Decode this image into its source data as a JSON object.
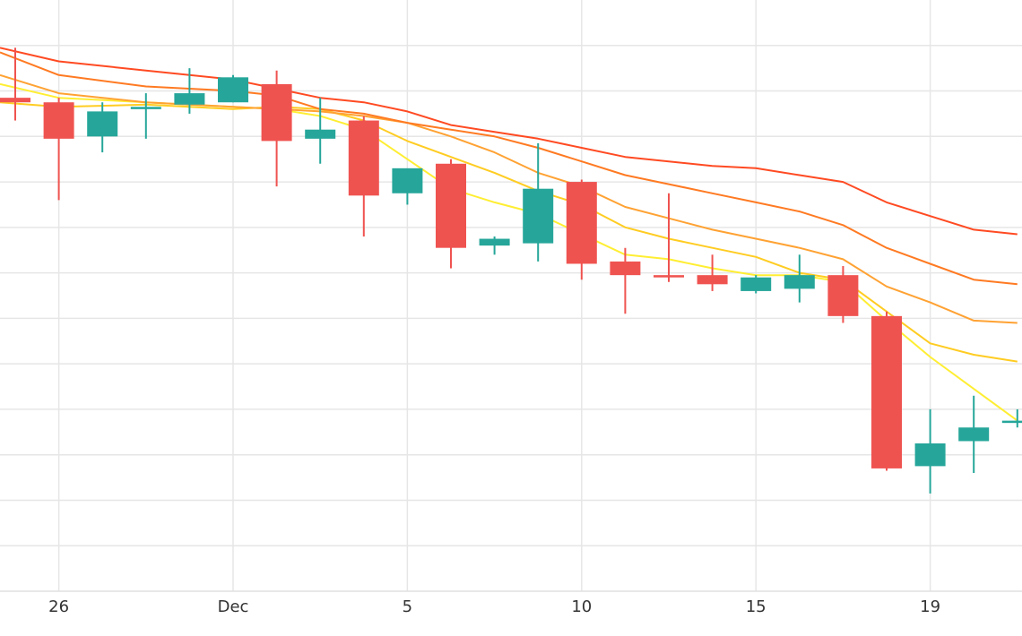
{
  "chart_data": {
    "type": "candlestick",
    "x_tick_labels": [
      {
        "label": "26",
        "day": 1
      },
      {
        "label": "Dec",
        "day": 5
      },
      {
        "label": "5",
        "day": 9
      },
      {
        "label": "10",
        "day": 13
      },
      {
        "label": "15",
        "day": 17
      },
      {
        "label": "19",
        "day": 21
      }
    ],
    "ylim": [
      0,
      13
    ],
    "horizontal_grid_values": [
      1,
      2,
      3,
      4,
      5,
      6,
      7,
      8,
      9,
      10,
      11,
      12
    ],
    "grid": true,
    "colors": {
      "up": "#26a69a",
      "down": "#ef5350",
      "grid": "#e6e6e6",
      "ma_lines": [
        "#ffee33",
        "#ffcc22",
        "#ffa233",
        "#ff7a22",
        "#ff4a22"
      ]
    },
    "candles": [
      {
        "day": 0,
        "open": 10.85,
        "high": 11.95,
        "low": 10.35,
        "close": 10.75
      },
      {
        "day": 1,
        "open": 10.75,
        "high": 10.85,
        "low": 8.6,
        "close": 9.95
      },
      {
        "day": 2,
        "open": 10.0,
        "high": 10.75,
        "low": 9.65,
        "close": 10.55
      },
      {
        "day": 3,
        "open": 10.6,
        "high": 10.95,
        "low": 9.95,
        "close": 10.65
      },
      {
        "day": 4,
        "open": 10.7,
        "high": 11.5,
        "low": 10.5,
        "close": 10.95
      },
      {
        "day": 5,
        "open": 10.75,
        "high": 11.35,
        "low": 10.75,
        "close": 11.3
      },
      {
        "day": 6,
        "open": 11.15,
        "high": 11.45,
        "low": 8.9,
        "close": 9.9
      },
      {
        "day": 7,
        "open": 9.95,
        "high": 10.85,
        "low": 9.4,
        "close": 10.15
      },
      {
        "day": 8,
        "open": 10.35,
        "high": 10.45,
        "low": 7.8,
        "close": 8.7
      },
      {
        "day": 9,
        "open": 8.75,
        "high": 9.25,
        "low": 8.5,
        "close": 9.3
      },
      {
        "day": 10,
        "open": 9.4,
        "high": 9.5,
        "low": 7.1,
        "close": 7.55
      },
      {
        "day": 11,
        "open": 7.6,
        "high": 7.8,
        "low": 7.4,
        "close": 7.75
      },
      {
        "day": 12,
        "open": 7.65,
        "high": 9.85,
        "low": 7.25,
        "close": 8.85
      },
      {
        "day": 13,
        "open": 9.0,
        "high": 9.05,
        "low": 6.85,
        "close": 7.2
      },
      {
        "day": 14,
        "open": 7.25,
        "high": 7.55,
        "low": 6.1,
        "close": 6.95
      },
      {
        "day": 15,
        "open": 6.95,
        "high": 8.75,
        "low": 6.8,
        "close": 6.9
      },
      {
        "day": 16,
        "open": 6.95,
        "high": 7.4,
        "low": 6.6,
        "close": 6.75
      },
      {
        "day": 17,
        "open": 6.6,
        "high": 6.95,
        "low": 6.55,
        "close": 6.9
      },
      {
        "day": 18,
        "open": 6.65,
        "high": 7.4,
        "low": 6.35,
        "close": 6.95
      },
      {
        "day": 19,
        "open": 6.95,
        "high": 7.15,
        "low": 5.9,
        "close": 6.05
      },
      {
        "day": 20,
        "open": 6.05,
        "high": 6.15,
        "low": 2.65,
        "close": 2.7
      },
      {
        "day": 21,
        "open": 2.75,
        "high": 4.0,
        "low": 2.15,
        "close": 3.25
      },
      {
        "day": 22,
        "open": 3.3,
        "high": 4.3,
        "low": 2.6,
        "close": 3.6
      },
      {
        "day": 23,
        "open": 3.7,
        "high": 4.0,
        "low": 3.6,
        "close": 3.75
      }
    ],
    "moving_averages": [
      {
        "color": "#ffee33",
        "points": [
          [
            -0.35,
            11.15
          ],
          [
            1,
            10.85
          ],
          [
            3,
            10.75
          ],
          [
            5,
            10.65
          ],
          [
            6,
            10.6
          ],
          [
            7,
            10.45
          ],
          [
            8,
            10.15
          ],
          [
            9,
            9.5
          ],
          [
            10,
            8.85
          ],
          [
            11,
            8.55
          ],
          [
            12,
            8.3
          ],
          [
            13,
            7.85
          ],
          [
            14,
            7.4
          ],
          [
            15,
            7.3
          ],
          [
            16,
            7.1
          ],
          [
            17,
            6.95
          ],
          [
            18,
            6.95
          ],
          [
            19,
            6.8
          ],
          [
            20,
            5.95
          ],
          [
            21,
            5.15
          ],
          [
            22,
            4.45
          ],
          [
            23,
            3.75
          ]
        ]
      },
      {
        "color": "#ffcc22",
        "points": [
          [
            -0.35,
            10.75
          ],
          [
            1,
            10.65
          ],
          [
            3,
            10.7
          ],
          [
            5,
            10.6
          ],
          [
            6,
            10.65
          ],
          [
            7,
            10.6
          ],
          [
            8,
            10.35
          ],
          [
            9,
            9.9
          ],
          [
            10,
            9.55
          ],
          [
            11,
            9.2
          ],
          [
            12,
            8.8
          ],
          [
            13,
            8.5
          ],
          [
            14,
            8.0
          ],
          [
            15,
            7.75
          ],
          [
            16,
            7.55
          ],
          [
            17,
            7.35
          ],
          [
            18,
            7.0
          ],
          [
            19,
            6.85
          ],
          [
            20,
            6.15
          ],
          [
            21,
            5.45
          ],
          [
            22,
            5.2
          ],
          [
            23,
            5.05
          ]
        ]
      },
      {
        "color": "#ffa233",
        "points": [
          [
            -0.35,
            11.35
          ],
          [
            1,
            10.95
          ],
          [
            3,
            10.75
          ],
          [
            5,
            10.65
          ],
          [
            6,
            10.6
          ],
          [
            7,
            10.55
          ],
          [
            8,
            10.45
          ],
          [
            9,
            10.3
          ],
          [
            10,
            10.0
          ],
          [
            11,
            9.65
          ],
          [
            12,
            9.2
          ],
          [
            13,
            8.9
          ],
          [
            14,
            8.45
          ],
          [
            15,
            8.2
          ],
          [
            16,
            7.95
          ],
          [
            17,
            7.75
          ],
          [
            18,
            7.55
          ],
          [
            19,
            7.3
          ],
          [
            20,
            6.7
          ],
          [
            21,
            6.35
          ],
          [
            22,
            5.95
          ],
          [
            23,
            5.9
          ]
        ]
      },
      {
        "color": "#ff7a22",
        "points": [
          [
            -0.35,
            11.85
          ],
          [
            1,
            11.35
          ],
          [
            3,
            11.1
          ],
          [
            5,
            11.0
          ],
          [
            6,
            10.9
          ],
          [
            7,
            10.6
          ],
          [
            8,
            10.5
          ],
          [
            9,
            10.3
          ],
          [
            10,
            10.15
          ],
          [
            11,
            10.0
          ],
          [
            12,
            9.75
          ],
          [
            13,
            9.45
          ],
          [
            14,
            9.15
          ],
          [
            15,
            8.95
          ],
          [
            16,
            8.75
          ],
          [
            17,
            8.55
          ],
          [
            18,
            8.35
          ],
          [
            19,
            8.05
          ],
          [
            20,
            7.55
          ],
          [
            21,
            7.2
          ],
          [
            22,
            6.85
          ],
          [
            23,
            6.75
          ]
        ]
      },
      {
        "color": "#ff4a22",
        "points": [
          [
            -0.35,
            11.95
          ],
          [
            1,
            11.65
          ],
          [
            3,
            11.45
          ],
          [
            5,
            11.25
          ],
          [
            6,
            11.05
          ],
          [
            7,
            10.85
          ],
          [
            8,
            10.75
          ],
          [
            9,
            10.55
          ],
          [
            10,
            10.25
          ],
          [
            11,
            10.1
          ],
          [
            12,
            9.95
          ],
          [
            13,
            9.75
          ],
          [
            14,
            9.55
          ],
          [
            15,
            9.45
          ],
          [
            16,
            9.35
          ],
          [
            17,
            9.3
          ],
          [
            18,
            9.15
          ],
          [
            19,
            9.0
          ],
          [
            20,
            8.55
          ],
          [
            21,
            8.25
          ],
          [
            22,
            7.95
          ],
          [
            23,
            7.85
          ]
        ]
      }
    ]
  }
}
